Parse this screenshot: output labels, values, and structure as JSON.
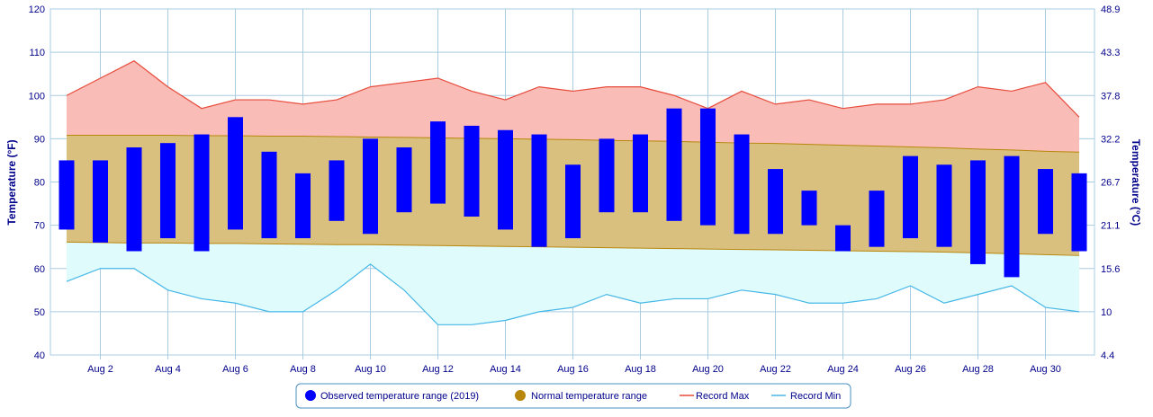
{
  "chart_data": {
    "type": "bar",
    "title": "",
    "ylabel_left": "Temperature (°F)",
    "ylabel_right": "Temperature (°C)",
    "ylim": [
      40,
      120
    ],
    "yticks_left": [
      "40",
      "50",
      "60",
      "70",
      "80",
      "90",
      "100",
      "110",
      "120"
    ],
    "yticks_right": [
      "4.4",
      "10",
      "15.6",
      "21.1",
      "26.7",
      "32.2",
      "37.8",
      "43.3",
      "48.9"
    ],
    "x_days": [
      1,
      2,
      3,
      4,
      5,
      6,
      7,
      8,
      9,
      10,
      11,
      12,
      13,
      14,
      15,
      16,
      17,
      18,
      19,
      20,
      21,
      22,
      23,
      24,
      25,
      26,
      27,
      28,
      29,
      30,
      31
    ],
    "x_tick_labels": [
      "Aug 2",
      "Aug 4",
      "Aug 6",
      "Aug 8",
      "Aug 10",
      "Aug 12",
      "Aug 14",
      "Aug 16",
      "Aug 18",
      "Aug 20",
      "Aug 22",
      "Aug 24",
      "Aug 26",
      "Aug 28",
      "Aug 30"
    ],
    "x_tick_days": [
      2,
      4,
      6,
      8,
      10,
      12,
      14,
      16,
      18,
      20,
      22,
      24,
      26,
      28,
      30
    ],
    "colors": {
      "observed": "#0000ff",
      "normal_fill": "#d9c07f",
      "normal_line": "#b8860b",
      "legend_normal_marker": "#b8860b",
      "record_max_line": "#e74c3c",
      "record_max_fill": "#f9bcb6",
      "record_min_line": "#45b7e6",
      "record_min_fill": "#e0fbfc",
      "grid": "#a9cce3",
      "axis_text": "#00008b"
    },
    "series": [
      {
        "name": "Observed temperature range (2019)",
        "high": [
          85,
          85,
          88,
          89,
          91,
          95,
          87,
          82,
          85,
          90,
          88,
          94,
          93,
          92,
          91,
          84,
          90,
          91,
          97,
          97,
          91,
          83,
          78,
          70,
          78,
          86,
          84,
          85,
          86,
          83,
          82
        ],
        "low": [
          69,
          66,
          64,
          67,
          64,
          69,
          67,
          67,
          71,
          68,
          73,
          75,
          72,
          69,
          65,
          67,
          73,
          73,
          71,
          70,
          68,
          68,
          70,
          64,
          65,
          67,
          65,
          61,
          58,
          68,
          64
        ]
      },
      {
        "name": "Normal temperature range",
        "high": [
          90.8,
          90.8,
          90.8,
          90.8,
          90.7,
          90.7,
          90.6,
          90.6,
          90.5,
          90.4,
          90.3,
          90.2,
          90.1,
          90,
          89.9,
          89.8,
          89.6,
          89.5,
          89.4,
          89.2,
          89,
          88.9,
          88.7,
          88.5,
          88.3,
          88.1,
          87.9,
          87.6,
          87.4,
          87.1,
          86.9
        ],
        "low": [
          66.1,
          66,
          65.9,
          65.9,
          65.8,
          65.8,
          65.7,
          65.6,
          65.5,
          65.5,
          65.4,
          65.3,
          65.2,
          65.1,
          65,
          64.9,
          64.8,
          64.7,
          64.6,
          64.5,
          64.4,
          64.3,
          64.2,
          64.1,
          64,
          63.9,
          63.8,
          63.6,
          63.4,
          63.2,
          63
        ]
      },
      {
        "name": "Record Max",
        "values": [
          100,
          104,
          108,
          102,
          97,
          99,
          99,
          98,
          99,
          102,
          103,
          104,
          101,
          99,
          102,
          101,
          102,
          102,
          100,
          97,
          101,
          98,
          99,
          97,
          98,
          98,
          99,
          102,
          101,
          103,
          95
        ]
      },
      {
        "name": "Record Min",
        "values": [
          57,
          60,
          60,
          55,
          53,
          52,
          50,
          50,
          55,
          61,
          55,
          47,
          47,
          48,
          50,
          51,
          54,
          52,
          53,
          53,
          55,
          54,
          52,
          52,
          53,
          56,
          52,
          54,
          56,
          51,
          50
        ]
      }
    ],
    "legend": {
      "observed_label": "Observed temperature range (2019)",
      "normal_label": "Normal temperature range",
      "record_max_label": "Record Max",
      "record_min_label": "Record Min",
      "placement": "bottom-center"
    },
    "grid": true
  }
}
